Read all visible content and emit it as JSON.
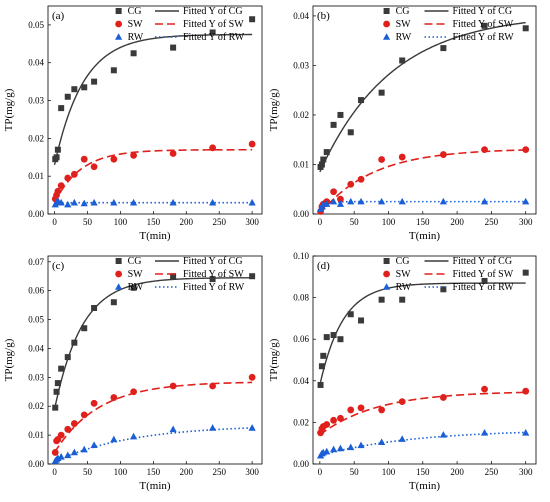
{
  "colors": {
    "CG": "#3a3a3a",
    "SW": "#e0201c",
    "RW": "#1a5fd6"
  },
  "chart_data": [
    {
      "type": "scatter",
      "panel_label": "(a)",
      "xlabel": "T(min)",
      "ylabel": "TP(mg/g)",
      "xlim": [
        -10,
        315
      ],
      "ylim": [
        0,
        0.055
      ],
      "xticks": [
        0,
        50,
        100,
        150,
        200,
        250,
        300
      ],
      "yticks": [
        0.0,
        0.01,
        0.02,
        0.03,
        0.04,
        0.05
      ],
      "ytick_labels": [
        "0.00",
        "0.01",
        "0.02",
        "0.03",
        "0.04",
        "0.05"
      ],
      "legend_position": "top",
      "series": [
        {
          "name": "CG",
          "fit_name": "Fitted Y of CG",
          "marker": "square",
          "x": [
            1,
            3,
            5,
            10,
            20,
            30,
            45,
            60,
            90,
            120,
            180,
            240,
            300
          ],
          "y": [
            0.0145,
            0.015,
            0.017,
            0.028,
            0.031,
            0.033,
            0.0335,
            0.035,
            0.038,
            0.0425,
            0.044,
            0.048,
            0.0515
          ],
          "fit": {
            "qe": 0.0475,
            "q0": 0.013,
            "k": 0.023
          }
        },
        {
          "name": "SW",
          "fit_name": "Fitted Y of SW",
          "marker": "circle",
          "x": [
            1,
            3,
            5,
            10,
            20,
            30,
            45,
            60,
            90,
            120,
            180,
            240,
            300
          ],
          "y": [
            0.004,
            0.005,
            0.006,
            0.0075,
            0.0095,
            0.0105,
            0.0145,
            0.0125,
            0.0145,
            0.0155,
            0.016,
            0.0175,
            0.0185
          ],
          "fit": {
            "qe": 0.017,
            "q0": 0.003,
            "k": 0.025
          }
        },
        {
          "name": "RW",
          "fit_name": "Fitted Y of RW",
          "marker": "triangle",
          "x": [
            1,
            3,
            5,
            10,
            20,
            30,
            45,
            60,
            90,
            120,
            180,
            240,
            300
          ],
          "y": [
            0.0025,
            0.003,
            0.0035,
            0.003,
            0.0025,
            0.003,
            0.0028,
            0.003,
            0.003,
            0.003,
            0.003,
            0.003,
            0.003
          ],
          "fit": {
            "qe": 0.003,
            "q0": 0.0025,
            "k": 0.1
          }
        }
      ]
    },
    {
      "type": "scatter",
      "panel_label": "(b)",
      "xlabel": "T(min)",
      "ylabel": "TP(mg/g)",
      "xlim": [
        -10,
        315
      ],
      "ylim": [
        0,
        0.042
      ],
      "xticks": [
        0,
        50,
        100,
        150,
        200,
        250,
        300
      ],
      "yticks": [
        0.0,
        0.01,
        0.02,
        0.03,
        0.04
      ],
      "ytick_labels": [
        "0.00",
        "0.01",
        "0.02",
        "0.03",
        "0.04"
      ],
      "legend_position": "top",
      "series": [
        {
          "name": "CG",
          "fit_name": "Fitted Y of CG",
          "marker": "square",
          "x": [
            1,
            3,
            5,
            10,
            20,
            30,
            45,
            60,
            90,
            120,
            180,
            240,
            300
          ],
          "y": [
            0.0095,
            0.01,
            0.011,
            0.0125,
            0.018,
            0.02,
            0.0165,
            0.023,
            0.0245,
            0.031,
            0.0335,
            0.038,
            0.0375
          ],
          "fit": {
            "qe": 0.0405,
            "q0": 0.0085,
            "k": 0.0095
          }
        },
        {
          "name": "SW",
          "fit_name": "Fitted Y of SW",
          "marker": "circle",
          "x": [
            1,
            3,
            5,
            10,
            20,
            30,
            45,
            60,
            90,
            120,
            180,
            240,
            300
          ],
          "y": [
            0.0005,
            0.0015,
            0.002,
            0.0025,
            0.0045,
            0.003,
            0.006,
            0.007,
            0.011,
            0.0115,
            0.012,
            0.013,
            0.013
          ],
          "fit": {
            "qe": 0.0132,
            "q0": 0.0,
            "k": 0.013
          }
        },
        {
          "name": "RW",
          "fit_name": "Fitted Y of RW",
          "marker": "triangle",
          "x": [
            1,
            3,
            5,
            10,
            20,
            30,
            45,
            60,
            90,
            120,
            180,
            240,
            300
          ],
          "y": [
            0.001,
            0.0015,
            0.002,
            0.002,
            0.0025,
            0.002,
            0.0025,
            0.0025,
            0.0025,
            0.0025,
            0.0025,
            0.0025,
            0.0025
          ],
          "fit": {
            "qe": 0.0025,
            "q0": 0.001,
            "k": 0.1
          }
        }
      ]
    },
    {
      "type": "scatter",
      "panel_label": "(c)",
      "xlabel": "T(min)",
      "ylabel": "TP(mg/g)",
      "xlim": [
        -10,
        315
      ],
      "ylim": [
        0,
        0.072
      ],
      "xticks": [
        0,
        50,
        100,
        150,
        200,
        250,
        300
      ],
      "yticks": [
        0.0,
        0.01,
        0.02,
        0.03,
        0.04,
        0.05,
        0.06,
        0.07
      ],
      "ytick_labels": [
        "0.00",
        "0.01",
        "0.02",
        "0.03",
        "0.04",
        "0.05",
        "0.06",
        "0.07"
      ],
      "legend_position": "top",
      "series": [
        {
          "name": "CG",
          "fit_name": "Fitted Y of CG",
          "marker": "square",
          "x": [
            1,
            3,
            5,
            10,
            20,
            30,
            45,
            60,
            90,
            120,
            180,
            240,
            300
          ],
          "y": [
            0.0195,
            0.025,
            0.028,
            0.033,
            0.037,
            0.042,
            0.047,
            0.054,
            0.056,
            0.061,
            0.065,
            0.064,
            0.065
          ],
          "fit": {
            "qe": 0.0645,
            "q0": 0.019,
            "k": 0.024
          }
        },
        {
          "name": "SW",
          "fit_name": "Fitted Y of SW",
          "marker": "circle",
          "x": [
            1,
            3,
            5,
            10,
            20,
            30,
            45,
            60,
            90,
            120,
            180,
            240,
            300
          ],
          "y": [
            0.004,
            0.008,
            0.0085,
            0.01,
            0.012,
            0.014,
            0.017,
            0.021,
            0.023,
            0.025,
            0.027,
            0.027,
            0.03
          ],
          "fit": {
            "qe": 0.0285,
            "q0": 0.004,
            "k": 0.015
          }
        },
        {
          "name": "RW",
          "fit_name": "Fitted Y of RW",
          "marker": "triangle",
          "x": [
            1,
            3,
            5,
            10,
            20,
            30,
            45,
            60,
            90,
            120,
            180,
            240,
            300
          ],
          "y": [
            0.001,
            0.0015,
            0.002,
            0.0025,
            0.003,
            0.004,
            0.005,
            0.0065,
            0.0085,
            0.0095,
            0.012,
            0.0125,
            0.0125
          ],
          "fit": {
            "qe": 0.0135,
            "q0": 0.0008,
            "k": 0.0085
          }
        }
      ]
    },
    {
      "type": "scatter",
      "panel_label": "(d)",
      "xlabel": "T(min)",
      "ylabel": "TP(mg/g)",
      "xlim": [
        -10,
        315
      ],
      "ylim": [
        0,
        0.1
      ],
      "xticks": [
        0,
        50,
        100,
        150,
        200,
        250,
        300
      ],
      "yticks": [
        0.0,
        0.02,
        0.04,
        0.06,
        0.08,
        0.1
      ],
      "ytick_labels": [
        "0.00",
        "0.02",
        "0.04",
        "0.06",
        "0.08",
        "0.10"
      ],
      "legend_position": "top",
      "series": [
        {
          "name": "CG",
          "fit_name": "Fitted Y of CG",
          "marker": "square",
          "x": [
            1,
            3,
            5,
            10,
            20,
            30,
            45,
            60,
            90,
            120,
            180,
            240,
            300
          ],
          "y": [
            0.038,
            0.047,
            0.052,
            0.061,
            0.062,
            0.06,
            0.072,
            0.069,
            0.079,
            0.079,
            0.084,
            0.088,
            0.092
          ],
          "fit": {
            "qe": 0.087,
            "q0": 0.038,
            "k": 0.03
          }
        },
        {
          "name": "SW",
          "fit_name": "Fitted Y of SW",
          "marker": "circle",
          "x": [
            1,
            3,
            5,
            10,
            20,
            30,
            45,
            60,
            90,
            120,
            180,
            240,
            300
          ],
          "y": [
            0.015,
            0.017,
            0.018,
            0.019,
            0.021,
            0.022,
            0.026,
            0.027,
            0.026,
            0.03,
            0.032,
            0.036,
            0.035
          ],
          "fit": {
            "qe": 0.035,
            "q0": 0.014,
            "k": 0.012
          }
        },
        {
          "name": "RW",
          "fit_name": "Fitted Y of RW",
          "marker": "triangle",
          "x": [
            1,
            3,
            5,
            10,
            20,
            30,
            45,
            60,
            90,
            120,
            180,
            240,
            300
          ],
          "y": [
            0.004,
            0.005,
            0.0055,
            0.006,
            0.007,
            0.0075,
            0.008,
            0.009,
            0.0105,
            0.012,
            0.014,
            0.015,
            0.015
          ],
          "fit": {
            "qe": 0.0165,
            "q0": 0.004,
            "k": 0.0075
          }
        }
      ]
    }
  ]
}
